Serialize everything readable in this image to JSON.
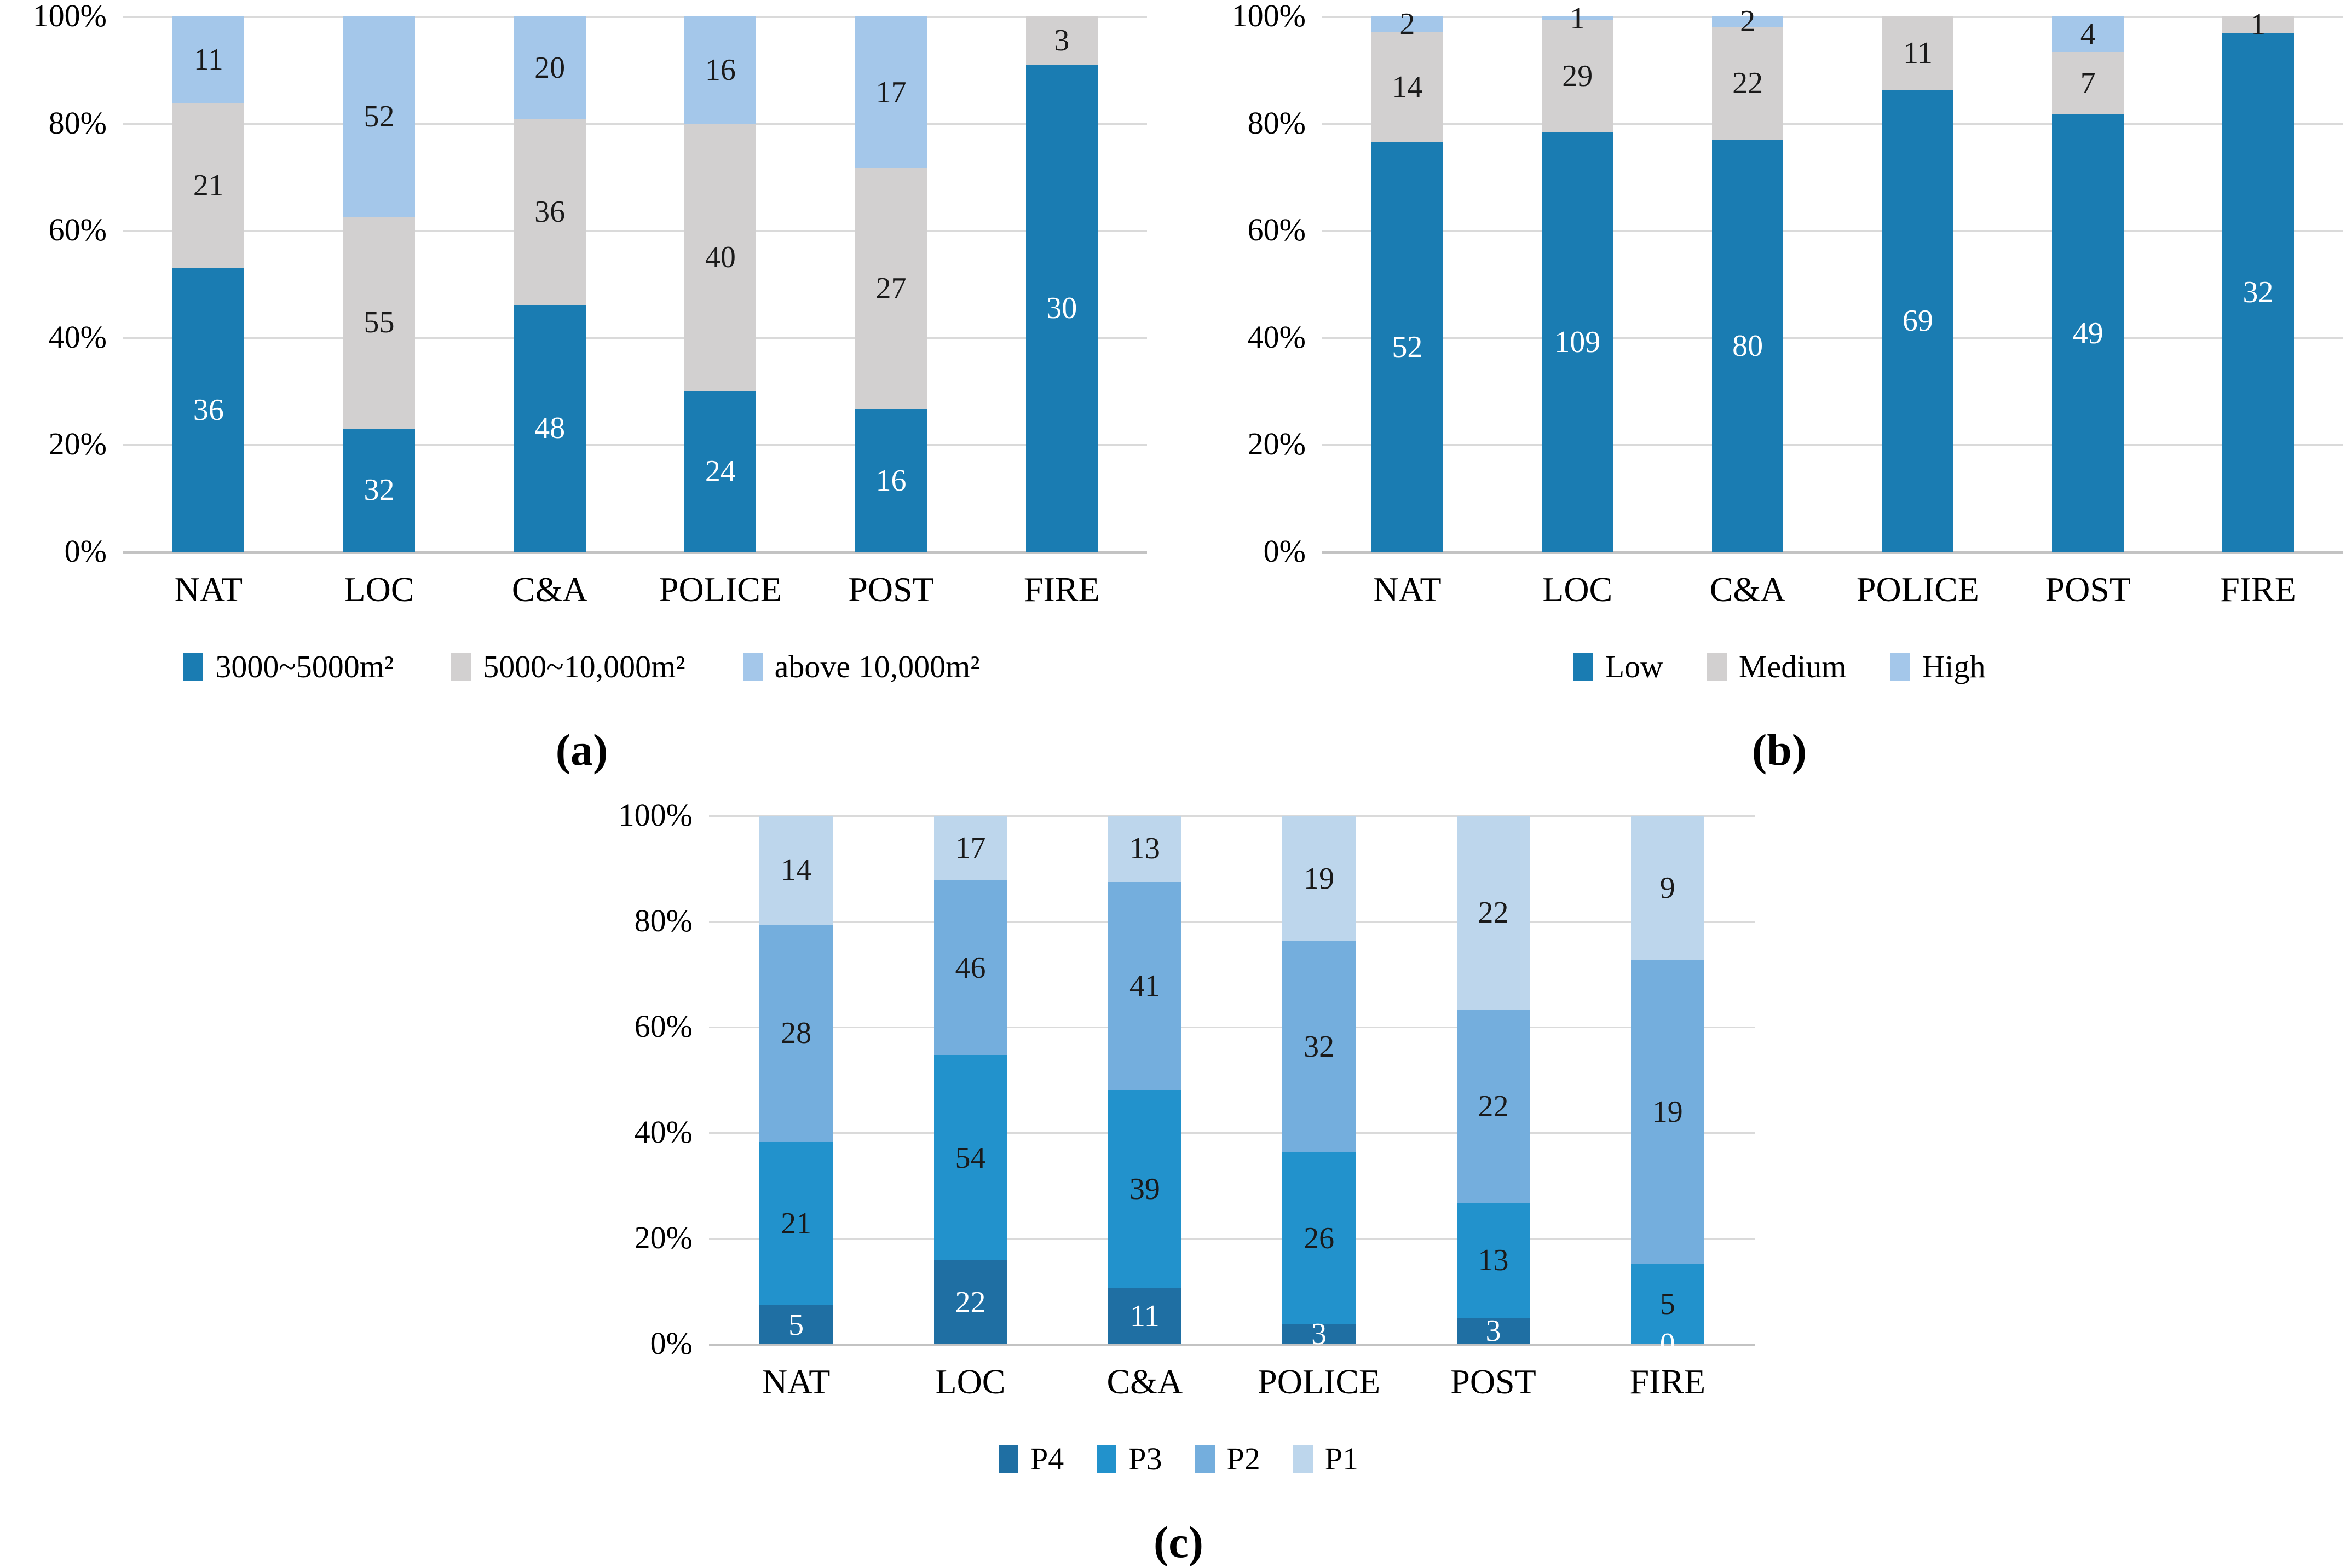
{
  "figure": {
    "background": "#ffffff",
    "gridline_color": "#DADADA",
    "axis_line_color": "#C3C3C3"
  },
  "chart_data": [
    {
      "type": "bar",
      "stacked": true,
      "percent_axis": true,
      "caption": "(a)",
      "title": "",
      "xlabel": "",
      "ylabel": "",
      "ylim": [
        "0%",
        "100%"
      ],
      "grid": true,
      "legend_position": "bottom",
      "yticks": [
        "100%",
        "80%",
        "60%",
        "40%",
        "20%",
        "0%"
      ],
      "categories": [
        "NAT",
        "LOC",
        "C&A",
        "POLICE",
        "POST",
        "FIRE"
      ],
      "series": [
        {
          "name": "3000~5000m²",
          "color": "#1A7CB2",
          "label_color": "#FFFFFF",
          "values": [
            36,
            32,
            48,
            24,
            16,
            30
          ],
          "labels": [
            "36",
            "32",
            "48",
            "24",
            "16",
            "30"
          ]
        },
        {
          "name": "5000~10,000m²",
          "color": "#D2D0D0",
          "label_color": "#1A1A1A",
          "values": [
            21,
            55,
            36,
            40,
            27,
            3
          ],
          "labels": [
            "21",
            "55",
            "36",
            "40",
            "27",
            "3"
          ]
        },
        {
          "name": "above 10,000m²",
          "color": "#A4C7EA",
          "label_color": "#1A1A1A",
          "values": [
            11,
            52,
            20,
            16,
            17,
            0
          ],
          "labels": [
            "11",
            "52",
            "20",
            "16",
            "17",
            ""
          ]
        }
      ]
    },
    {
      "type": "bar",
      "stacked": true,
      "percent_axis": true,
      "caption": "(b)",
      "title": "",
      "xlabel": "",
      "ylabel": "",
      "ylim": [
        "0%",
        "100%"
      ],
      "grid": true,
      "legend_position": "bottom",
      "yticks": [
        "100%",
        "80%",
        "60%",
        "40%",
        "20%",
        "0%"
      ],
      "categories": [
        "NAT",
        "LOC",
        "C&A",
        "POLICE",
        "POST",
        "FIRE"
      ],
      "series": [
        {
          "name": "Low",
          "color": "#1A7CB2",
          "label_color": "#FFFFFF",
          "values": [
            52,
            109,
            80,
            69,
            49,
            32
          ],
          "labels": [
            "52",
            "109",
            "80",
            "69",
            "49",
            "32"
          ]
        },
        {
          "name": "Medium",
          "color": "#D2D0D0",
          "label_color": "#1A1A1A",
          "values": [
            14,
            29,
            22,
            11,
            7,
            1
          ],
          "labels": [
            "14",
            "29",
            "22",
            "11",
            "7",
            "1"
          ]
        },
        {
          "name": "High",
          "color": "#A4C7EA",
          "label_color": "#1A1A1A",
          "values": [
            2,
            1,
            2,
            0,
            4,
            0
          ],
          "labels": [
            "2",
            "1",
            "2",
            "",
            "4",
            ""
          ]
        }
      ]
    },
    {
      "type": "bar",
      "stacked": true,
      "percent_axis": true,
      "caption": "(c)",
      "title": "",
      "xlabel": "",
      "ylabel": "",
      "ylim": [
        "0%",
        "100%"
      ],
      "grid": true,
      "legend_position": "bottom",
      "yticks": [
        "100%",
        "80%",
        "60%",
        "40%",
        "20%",
        "0%"
      ],
      "categories": [
        "NAT",
        "LOC",
        "C&A",
        "POLICE",
        "POST",
        "FIRE"
      ],
      "series": [
        {
          "name": "P4",
          "color": "#1F6FA3",
          "label_color": "#FFFFFF",
          "values": [
            5,
            22,
            11,
            3,
            3,
            0
          ],
          "labels": [
            "5",
            "22",
            "11",
            "3",
            "3",
            "0"
          ]
        },
        {
          "name": "P3",
          "color": "#2292CC",
          "label_color": "#1A1A1A",
          "values": [
            21,
            54,
            39,
            26,
            13,
            5
          ],
          "labels": [
            "21",
            "54",
            "39",
            "26",
            "13",
            "5"
          ]
        },
        {
          "name": "P2",
          "color": "#74AEDD",
          "label_color": "#1A1A1A",
          "values": [
            28,
            46,
            41,
            32,
            22,
            19
          ],
          "labels": [
            "28",
            "46",
            "41",
            "32",
            "22",
            "19"
          ]
        },
        {
          "name": "P1",
          "color": "#BDD6EC",
          "label_color": "#1A1A1A",
          "values": [
            14,
            17,
            13,
            19,
            22,
            9
          ],
          "labels": [
            "14",
            "17",
            "13",
            "19",
            "22",
            "9"
          ]
        }
      ]
    }
  ]
}
